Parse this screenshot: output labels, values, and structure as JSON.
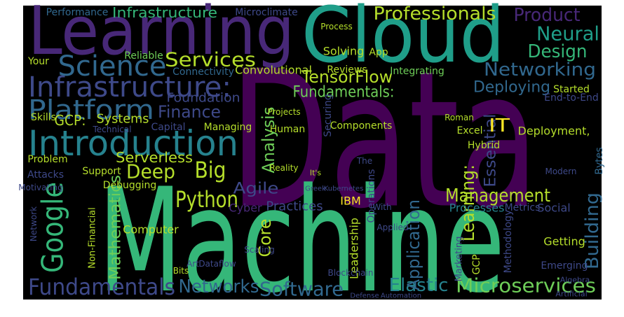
{
  "words": [
    "Data",
    "Machine",
    "Learning",
    "Cloud",
    "Introduction",
    "Infrastructure:",
    "Science",
    "Platform",
    "Google",
    "Fundamentals",
    "Networks",
    "Software",
    "Microservices",
    "Elastic",
    "Python",
    "Big",
    "Deep",
    "Serverless",
    "Services",
    "Professionals",
    "Product",
    "Neural",
    "Design",
    "Networking",
    "Deploying",
    "TensorFlow",
    "Fundamentals:",
    "Finance",
    "Foundation",
    "GCP:",
    "Systems",
    "Mathematics",
    "Management",
    "Building",
    "Essential",
    "IT",
    "Learning:",
    "Application",
    "Analysis",
    "Core",
    "Agile",
    "Infrastructure",
    "Performance",
    "Microclimate",
    "Convolutional",
    "Connectivity",
    "Reliable",
    "Your",
    "Skills",
    "Capital",
    "Managing",
    "Technical",
    "Problem",
    "Support",
    "Attacks",
    "Debugging",
    "IBM",
    "Practices",
    "Cyber",
    "Computer",
    "Non-Financial",
    "Processes",
    "Metrics",
    "Social",
    "Methodology",
    "Getting",
    "Emerging",
    "Marketing",
    "Leadership",
    "Operations",
    "Securing",
    "Components",
    "Human",
    "Excel",
    "Hybrid",
    "Deployment,",
    "Reviews",
    "Integrating",
    "Process",
    "Solving",
    "App",
    "Started",
    "End-to-End",
    "Modern",
    "Bytes",
    "Dataflow",
    "Bits",
    "Applied",
    "GCP",
    "Blockchain",
    "Scaling",
    "Art",
    "With",
    "The",
    "Defense",
    "Automation",
    "Algebra",
    "Artificial",
    "Network",
    "Motivating",
    "Roman",
    "Greek",
    "Kubernetes",
    "Reality",
    "It's",
    "Projects"
  ]
}
